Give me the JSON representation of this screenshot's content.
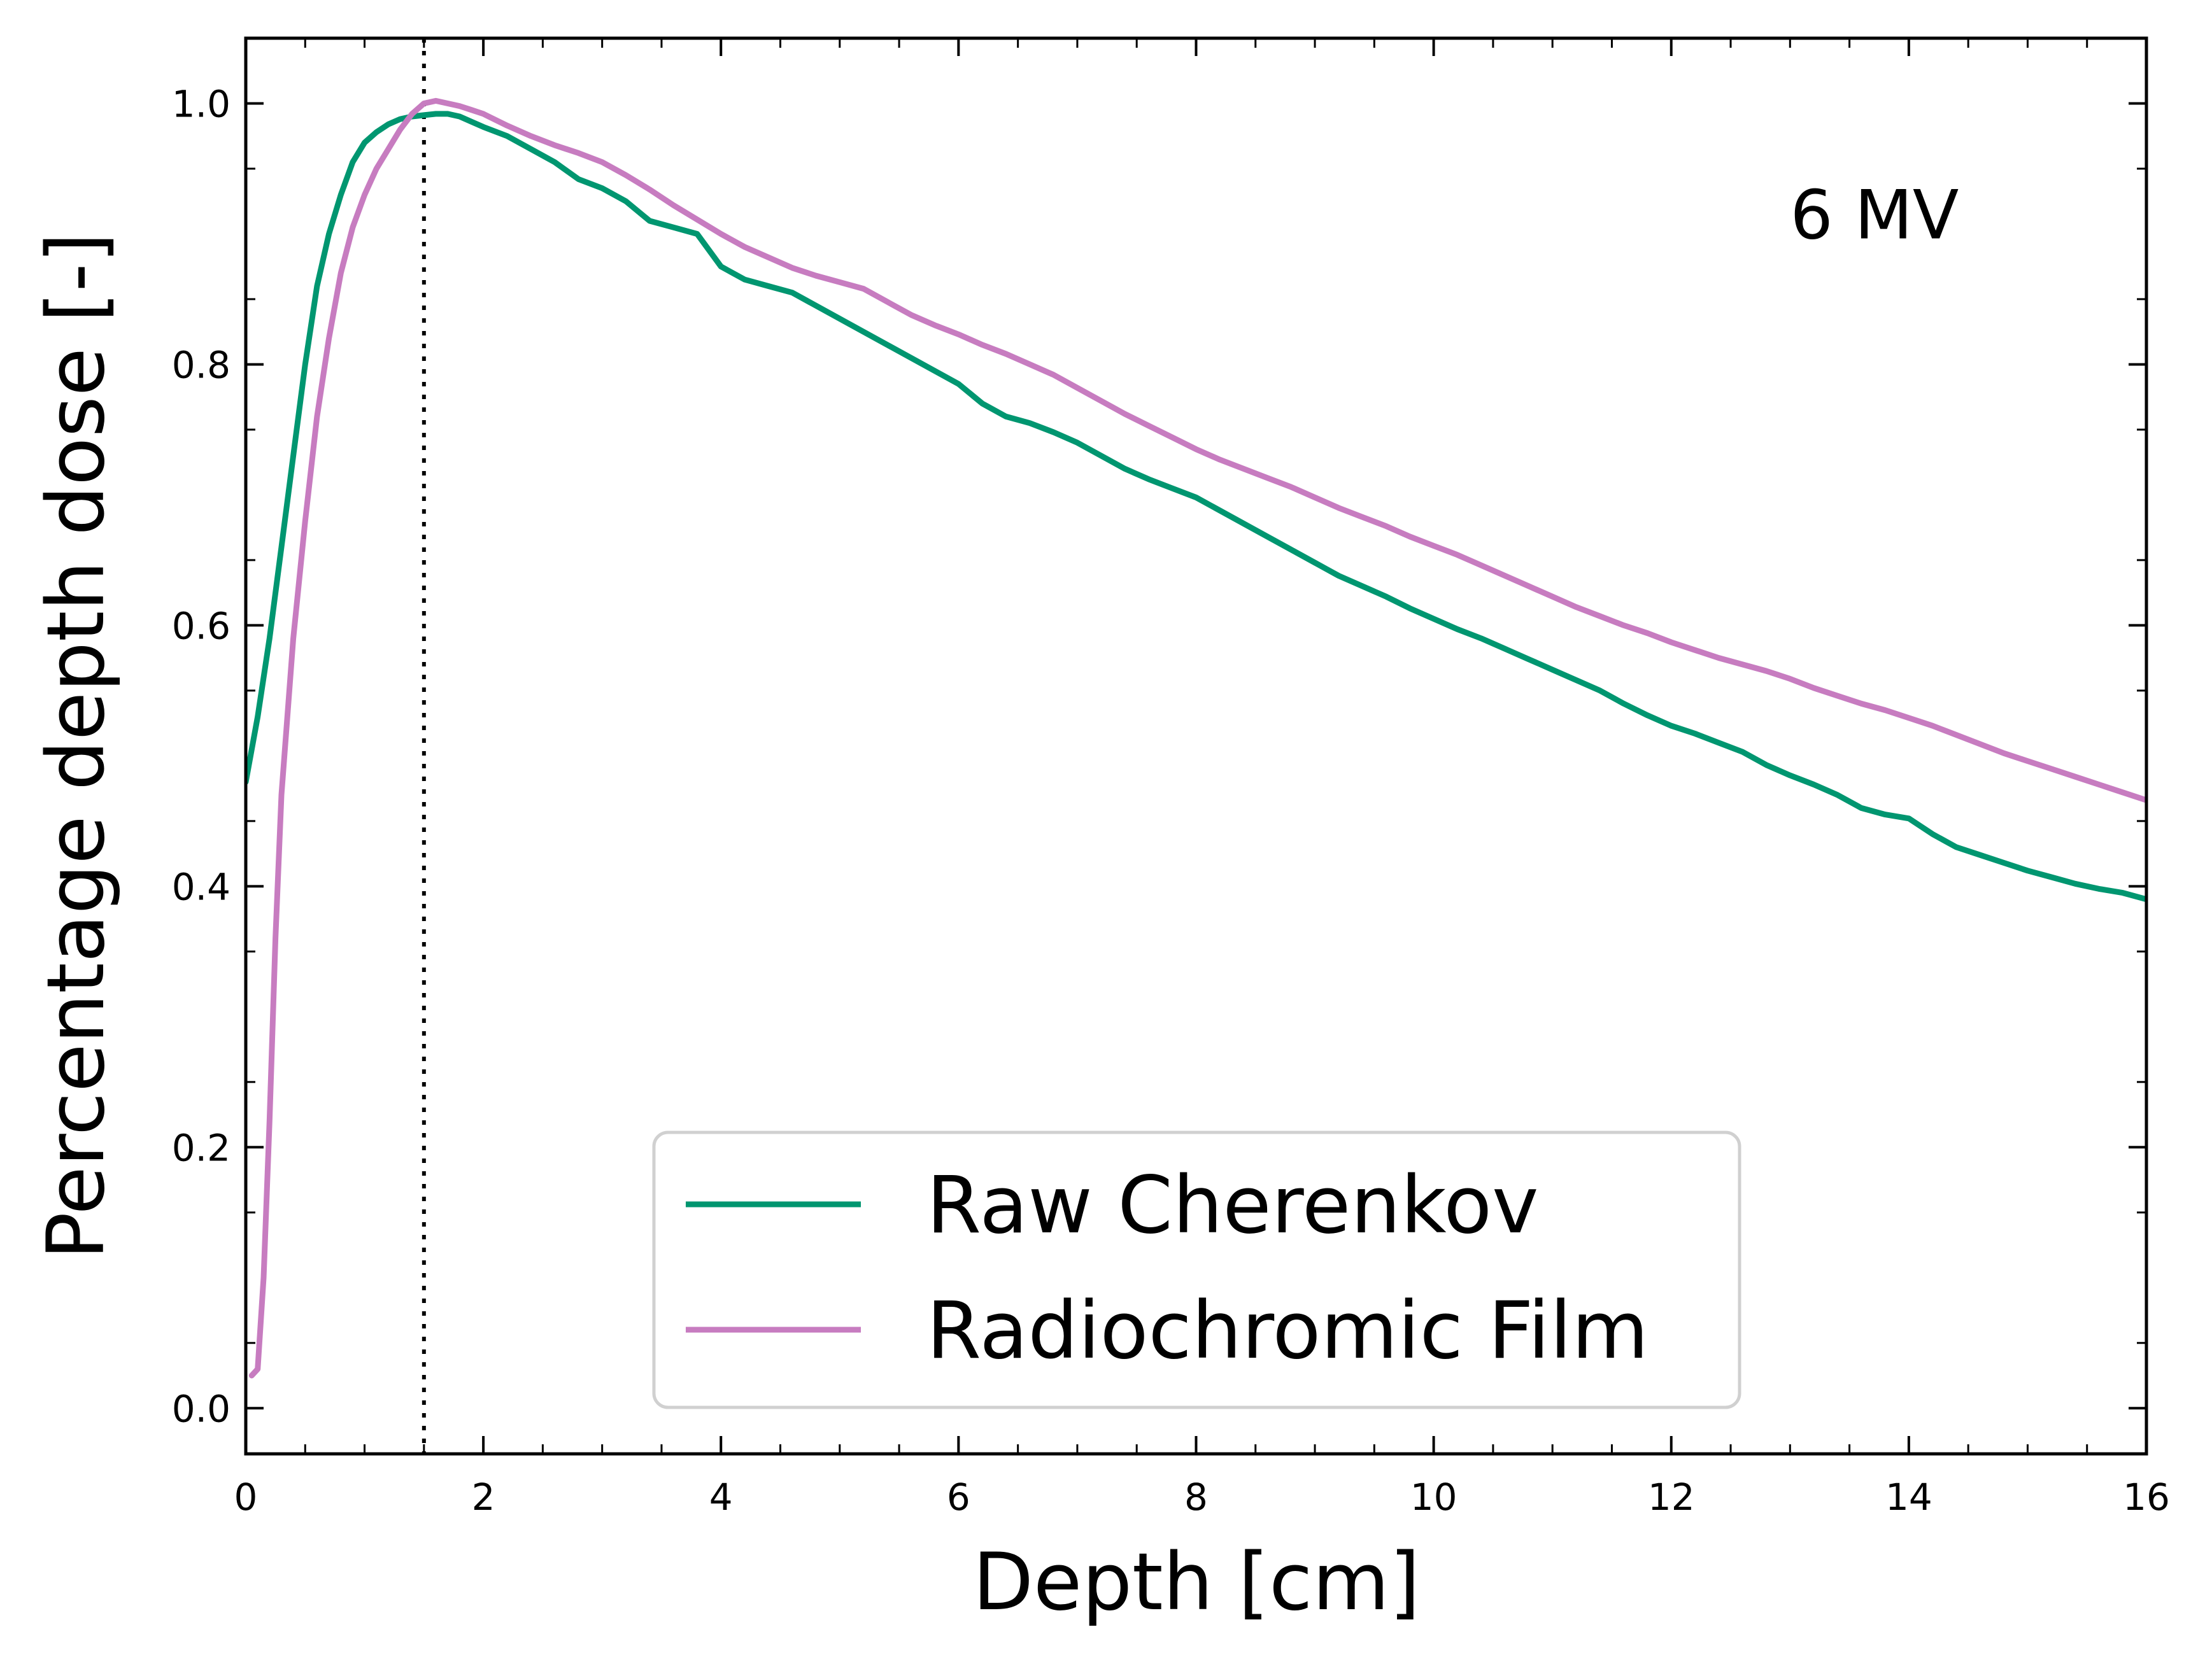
{
  "chart_data": {
    "type": "line",
    "title": "",
    "xlabel": "Depth [cm]",
    "ylabel": "Percentage depth dose [-]",
    "xlim": [
      0,
      16
    ],
    "ylim": [
      -0.035,
      1.05
    ],
    "xticks": [
      0,
      2,
      4,
      6,
      8,
      10,
      12,
      14,
      16
    ],
    "xtick_labels": [
      "0",
      "2",
      "4",
      "6",
      "8",
      "10",
      "12",
      "14",
      "16"
    ],
    "yticks": [
      0.0,
      0.2,
      0.4,
      0.6,
      0.8,
      1.0
    ],
    "ytick_labels": [
      "0.0",
      "0.2",
      "0.4",
      "0.6",
      "0.8",
      "1.0"
    ],
    "grid": false,
    "legend_position": "lower-center",
    "annotation": {
      "text": "6 MV",
      "x": 13.0,
      "y": 0.915
    },
    "reference_line": {
      "orientation": "vertical",
      "x": 1.5,
      "style": "dotted",
      "color": "#000000"
    },
    "series": [
      {
        "name": "Raw Cherenkov",
        "color": "#009670",
        "x": [
          0,
          0.1,
          0.2,
          0.3,
          0.4,
          0.5,
          0.6,
          0.7,
          0.8,
          0.9,
          1.0,
          1.1,
          1.2,
          1.3,
          1.4,
          1.5,
          1.6,
          1.7,
          1.8,
          1.9,
          2.0,
          2.2,
          2.4,
          2.6,
          2.8,
          3.0,
          3.2,
          3.4,
          3.6,
          3.8,
          4.0,
          4.2,
          4.4,
          4.6,
          4.8,
          5.0,
          5.2,
          5.4,
          5.6,
          5.8,
          6.0,
          6.2,
          6.4,
          6.6,
          6.8,
          7.0,
          7.2,
          7.4,
          7.6,
          7.8,
          8.0,
          8.2,
          8.4,
          8.6,
          8.8,
          9.0,
          9.2,
          9.4,
          9.6,
          9.8,
          10.0,
          10.2,
          10.4,
          10.6,
          10.8,
          11.0,
          11.2,
          11.4,
          11.6,
          11.8,
          12.0,
          12.2,
          12.4,
          12.6,
          12.8,
          13.0,
          13.2,
          13.4,
          13.6,
          13.8,
          14.0,
          14.2,
          14.4,
          14.6,
          14.8,
          15.0,
          15.2,
          15.4,
          15.6,
          15.8,
          16.0
        ],
        "values": [
          0.48,
          0.53,
          0.59,
          0.66,
          0.73,
          0.8,
          0.86,
          0.9,
          0.93,
          0.955,
          0.97,
          0.978,
          0.984,
          0.988,
          0.99,
          0.991,
          0.992,
          0.992,
          0.99,
          0.986,
          0.982,
          0.975,
          0.965,
          0.955,
          0.942,
          0.935,
          0.925,
          0.91,
          0.905,
          0.9,
          0.875,
          0.865,
          0.86,
          0.855,
          0.845,
          0.835,
          0.825,
          0.815,
          0.805,
          0.795,
          0.785,
          0.77,
          0.76,
          0.755,
          0.748,
          0.74,
          0.73,
          0.72,
          0.712,
          0.705,
          0.698,
          0.688,
          0.678,
          0.668,
          0.658,
          0.648,
          0.638,
          0.63,
          0.622,
          0.613,
          0.605,
          0.597,
          0.59,
          0.582,
          0.574,
          0.566,
          0.558,
          0.55,
          0.54,
          0.531,
          0.523,
          0.517,
          0.51,
          0.503,
          0.493,
          0.485,
          0.478,
          0.47,
          0.46,
          0.455,
          0.452,
          0.44,
          0.43,
          0.424,
          0.418,
          0.412,
          0.407,
          0.402,
          0.398,
          0.395,
          0.39
        ]
      },
      {
        "name": "Radiochromic Film",
        "color": "#c77cc0",
        "x": [
          0.05,
          0.1,
          0.15,
          0.2,
          0.25,
          0.3,
          0.4,
          0.5,
          0.6,
          0.7,
          0.8,
          0.9,
          1.0,
          1.1,
          1.2,
          1.3,
          1.4,
          1.5,
          1.6,
          1.7,
          1.8,
          1.9,
          2.0,
          2.2,
          2.4,
          2.6,
          2.8,
          3.0,
          3.2,
          3.4,
          3.6,
          3.8,
          4.0,
          4.2,
          4.4,
          4.6,
          4.8,
          5.0,
          5.2,
          5.4,
          5.6,
          5.8,
          6.0,
          6.2,
          6.4,
          6.6,
          6.8,
          7.0,
          7.2,
          7.4,
          7.6,
          7.8,
          8.0,
          8.2,
          8.4,
          8.6,
          8.8,
          9.0,
          9.2,
          9.4,
          9.6,
          9.8,
          10.0,
          10.2,
          10.4,
          10.6,
          10.8,
          11.0,
          11.2,
          11.4,
          11.6,
          11.8,
          12.0,
          12.2,
          12.4,
          12.6,
          12.8,
          13.0,
          13.2,
          13.4,
          13.6,
          13.8,
          14.0,
          14.2,
          14.4,
          14.6,
          14.8,
          15.0,
          15.2,
          15.4,
          15.6,
          15.8,
          16.0
        ],
        "values": [
          0.025,
          0.03,
          0.1,
          0.22,
          0.36,
          0.47,
          0.59,
          0.68,
          0.76,
          0.82,
          0.87,
          0.905,
          0.93,
          0.95,
          0.965,
          0.98,
          0.992,
          1.0,
          1.002,
          1.0,
          0.998,
          0.995,
          0.992,
          0.983,
          0.975,
          0.968,
          0.962,
          0.955,
          0.945,
          0.934,
          0.922,
          0.911,
          0.9,
          0.89,
          0.882,
          0.874,
          0.868,
          0.863,
          0.858,
          0.848,
          0.838,
          0.83,
          0.823,
          0.815,
          0.808,
          0.8,
          0.792,
          0.782,
          0.772,
          0.762,
          0.753,
          0.744,
          0.735,
          0.727,
          0.72,
          0.713,
          0.706,
          0.698,
          0.69,
          0.683,
          0.676,
          0.668,
          0.661,
          0.654,
          0.646,
          0.638,
          0.63,
          0.622,
          0.614,
          0.607,
          0.6,
          0.594,
          0.587,
          0.581,
          0.575,
          0.57,
          0.565,
          0.559,
          0.552,
          0.546,
          0.54,
          0.535,
          0.529,
          0.523,
          0.516,
          0.509,
          0.502,
          0.496,
          0.49,
          0.484,
          0.478,
          0.472,
          0.466
        ]
      }
    ]
  }
}
